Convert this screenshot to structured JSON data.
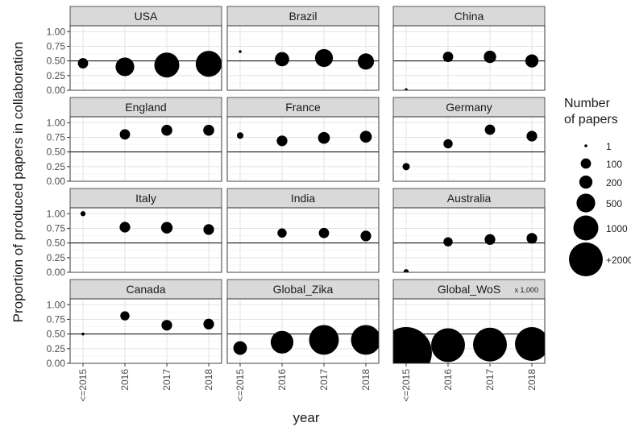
{
  "chart_data": {
    "type": "scatter",
    "facet_layout": "grid-4x3",
    "xlabel": "year",
    "ylabel": "Proportion of produced papers in collaboration",
    "ylim": [
      0,
      1.1
    ],
    "yticks": [
      "0.00",
      "0.25",
      "0.50",
      "0.75",
      "1.00"
    ],
    "x": [
      "<=2015",
      "2016",
      "2017",
      "2018"
    ],
    "reference_line": 0.5,
    "grid": true,
    "legend": {
      "title_line1": "Number",
      "title_line2": "of papers",
      "placement": "right",
      "entries": [
        {
          "label": "1",
          "value": 1
        },
        {
          "label": "100",
          "value": 100
        },
        {
          "label": "200",
          "value": 200
        },
        {
          "label": "500",
          "value": 500
        },
        {
          "label": "1000",
          "value": 1000
        },
        {
          "label": "+2000",
          "value": 2000
        }
      ]
    },
    "facets": [
      {
        "name": "USA",
        "note": "",
        "points": [
          {
            "x": "<=2015",
            "y": 0.46,
            "size": 100
          },
          {
            "x": "2016",
            "y": 0.4,
            "size": 500
          },
          {
            "x": "2017",
            "y": 0.43,
            "size": 1000
          },
          {
            "x": "2018",
            "y": 0.45,
            "size": 1100
          }
        ]
      },
      {
        "name": "Brazil",
        "note": "",
        "points": [
          {
            "x": "<=2015",
            "y": 0.66,
            "size": 1
          },
          {
            "x": "2016",
            "y": 0.53,
            "size": 250
          },
          {
            "x": "2017",
            "y": 0.55,
            "size": 450
          },
          {
            "x": "2018",
            "y": 0.49,
            "size": 350
          }
        ]
      },
      {
        "name": "China",
        "note": "",
        "points": [
          {
            "x": "<=2015",
            "y": 0.01,
            "size": 1
          },
          {
            "x": "2016",
            "y": 0.57,
            "size": 100
          },
          {
            "x": "2017",
            "y": 0.57,
            "size": 170
          },
          {
            "x": "2018",
            "y": 0.5,
            "size": 200
          }
        ]
      },
      {
        "name": "England",
        "note": "",
        "points": [
          {
            "x": "2016",
            "y": 0.8,
            "size": 100
          },
          {
            "x": "2017",
            "y": 0.87,
            "size": 120
          },
          {
            "x": "2018",
            "y": 0.87,
            "size": 120
          }
        ]
      },
      {
        "name": "France",
        "note": "",
        "points": [
          {
            "x": "<=2015",
            "y": 0.78,
            "size": 20
          },
          {
            "x": "2016",
            "y": 0.69,
            "size": 110
          },
          {
            "x": "2017",
            "y": 0.74,
            "size": 150
          },
          {
            "x": "2018",
            "y": 0.76,
            "size": 150
          }
        ]
      },
      {
        "name": "Germany",
        "note": "",
        "points": [
          {
            "x": "<=2015",
            "y": 0.25,
            "size": 30
          },
          {
            "x": "2016",
            "y": 0.64,
            "size": 70
          },
          {
            "x": "2017",
            "y": 0.88,
            "size": 100
          },
          {
            "x": "2018",
            "y": 0.77,
            "size": 110
          }
        ]
      },
      {
        "name": "Italy",
        "note": "",
        "points": [
          {
            "x": "<=2015",
            "y": 1.0,
            "size": 5
          },
          {
            "x": "2016",
            "y": 0.77,
            "size": 110
          },
          {
            "x": "2017",
            "y": 0.76,
            "size": 140
          },
          {
            "x": "2018",
            "y": 0.73,
            "size": 110
          }
        ]
      },
      {
        "name": "India",
        "note": "",
        "points": [
          {
            "x": "2016",
            "y": 0.67,
            "size": 70
          },
          {
            "x": "2017",
            "y": 0.67,
            "size": 100
          },
          {
            "x": "2018",
            "y": 0.62,
            "size": 110
          }
        ]
      },
      {
        "name": "Australia",
        "note": "",
        "points": [
          {
            "x": "<=2015",
            "y": 0.01,
            "size": 5
          },
          {
            "x": "2016",
            "y": 0.52,
            "size": 70
          },
          {
            "x": "2017",
            "y": 0.56,
            "size": 110
          },
          {
            "x": "2018",
            "y": 0.58,
            "size": 110
          }
        ]
      },
      {
        "name": "Canada",
        "note": "",
        "points": [
          {
            "x": "<=2015",
            "y": 0.5,
            "size": 1
          },
          {
            "x": "2016",
            "y": 0.81,
            "size": 70
          },
          {
            "x": "2017",
            "y": 0.65,
            "size": 110
          },
          {
            "x": "2018",
            "y": 0.67,
            "size": 110
          }
        ]
      },
      {
        "name": "Global_Zika",
        "note": "",
        "points": [
          {
            "x": "<=2015",
            "y": 0.26,
            "size": 220
          },
          {
            "x": "2016",
            "y": 0.36,
            "size": 800
          },
          {
            "x": "2017",
            "y": 0.4,
            "size": 1500
          },
          {
            "x": "2018",
            "y": 0.4,
            "size": 1500
          }
        ]
      },
      {
        "name": "Global_WoS",
        "note": "x 1,000",
        "points": [
          {
            "x": "<=2015",
            "y": 0.18,
            "size": 5000
          },
          {
            "x": "2016",
            "y": 0.31,
            "size": 2000
          },
          {
            "x": "2017",
            "y": 0.32,
            "size": 2000
          },
          {
            "x": "2018",
            "y": 0.33,
            "size": 2000
          }
        ]
      }
    ]
  }
}
